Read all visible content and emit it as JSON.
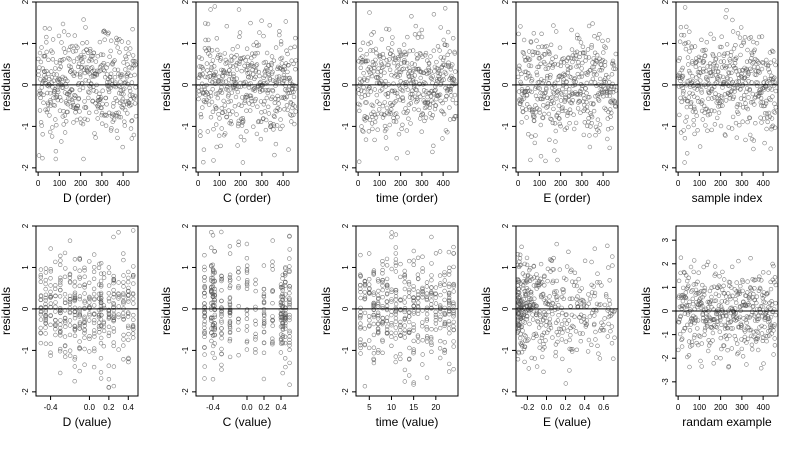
{
  "figure": {
    "ylabel": "residuals",
    "point_color": "#555555",
    "axis_color": "#000000"
  },
  "chart_data": [
    {
      "type": "scatter",
      "xlabel": "D (order)",
      "ylabel": "residuals",
      "xlim": [
        -10,
        470
      ],
      "ylim": [
        -2.1,
        2.0
      ],
      "xticks": [
        0,
        100,
        200,
        300,
        400
      ],
      "yticks": [
        -2,
        -1,
        0,
        1,
        2
      ],
      "hline": 0,
      "n_points": 460,
      "pattern": "uniform",
      "spread": 0.65
    },
    {
      "type": "scatter",
      "xlabel": "C (order)",
      "ylabel": "residuals",
      "xlim": [
        -10,
        470
      ],
      "ylim": [
        -2.1,
        2.0
      ],
      "xticks": [
        0,
        100,
        200,
        300,
        400
      ],
      "yticks": [
        -2,
        -1,
        0,
        1,
        2
      ],
      "hline": 0,
      "n_points": 460,
      "pattern": "uniform",
      "spread": 0.65
    },
    {
      "type": "scatter",
      "xlabel": "time (order)",
      "ylabel": "residuals",
      "xlim": [
        -10,
        470
      ],
      "ylim": [
        -2.1,
        2.0
      ],
      "xticks": [
        0,
        100,
        200,
        300,
        400
      ],
      "yticks": [
        -2,
        -1,
        0,
        1,
        2
      ],
      "hline": 0,
      "n_points": 460,
      "pattern": "uniform",
      "spread": 0.65
    },
    {
      "type": "scatter",
      "xlabel": "E (order)",
      "ylabel": "residuals",
      "xlim": [
        -10,
        470
      ],
      "ylim": [
        -2.1,
        2.0
      ],
      "xticks": [
        0,
        100,
        200,
        300,
        400
      ],
      "yticks": [
        -2,
        -1,
        0,
        1,
        2
      ],
      "hline": 0,
      "n_points": 460,
      "pattern": "uniform",
      "spread": 0.65
    },
    {
      "type": "scatter",
      "xlabel": "sample index",
      "ylabel": "residuals",
      "xlim": [
        -10,
        470
      ],
      "ylim": [
        -2.1,
        2.0
      ],
      "xticks": [
        0,
        100,
        200,
        300,
        400
      ],
      "yticks": [
        -2,
        -1,
        0,
        1,
        2
      ],
      "hline": 0,
      "n_points": 460,
      "pattern": "uniform",
      "spread": 0.65
    },
    {
      "type": "scatter",
      "xlabel": "D (value)",
      "ylabel": "residuals",
      "xlim": [
        -0.55,
        0.5
      ],
      "ylim": [
        -2.1,
        2.0
      ],
      "xticks": [
        -0.4,
        0.0,
        0.2,
        0.4
      ],
      "xticklabels": [
        "-0.4",
        "0.0",
        "0.2",
        "0.4"
      ],
      "yticks": [
        -2,
        -1,
        0,
        1,
        2
      ],
      "hline": 0,
      "n_points": 420,
      "pattern": "columns",
      "columns": [
        -0.5,
        -0.45,
        -0.4,
        -0.35,
        -0.3,
        -0.25,
        -0.2,
        -0.15,
        -0.1,
        -0.05,
        0.0,
        0.05,
        0.1,
        0.12,
        0.15,
        0.2,
        0.25,
        0.3,
        0.35,
        0.4,
        0.45
      ],
      "spread": 0.65
    },
    {
      "type": "scatter",
      "xlabel": "C (value)",
      "ylabel": "residuals",
      "xlim": [
        -0.6,
        0.6
      ],
      "ylim": [
        -2.1,
        2.0
      ],
      "xticks": [
        -0.4,
        0.0,
        0.2,
        0.4
      ],
      "xticklabels": [
        "-0.4",
        "0.0",
        "0.2",
        "0.4"
      ],
      "yticks": [
        -2,
        -1,
        0,
        1,
        2
      ],
      "hline": 0,
      "n_points": 380,
      "pattern": "columns",
      "columns": [
        -0.5,
        -0.42,
        -0.4,
        -0.38,
        -0.3,
        -0.2,
        -0.1,
        0.0,
        0.1,
        0.2,
        0.3,
        0.4,
        0.42,
        0.45,
        0.5
      ],
      "spread": 0.7
    },
    {
      "type": "scatter",
      "xlabel": "time (value)",
      "ylabel": "residuals",
      "xlim": [
        2,
        25
      ],
      "ylim": [
        -2.1,
        2.0
      ],
      "xticks": [
        5,
        10,
        15,
        20
      ],
      "xticklabels": [
        "5",
        "10",
        "15",
        "20"
      ],
      "yticks": [
        -2,
        -1,
        0,
        1,
        2
      ],
      "hline": 0,
      "n_points": 420,
      "pattern": "columns",
      "columns": [
        3,
        4,
        5,
        6,
        7,
        8,
        9,
        10,
        11,
        12,
        13,
        14,
        15,
        16,
        17,
        18,
        19,
        20,
        21,
        22,
        23,
        24
      ],
      "spread": 0.65
    },
    {
      "type": "scatter",
      "xlabel": "E (value)",
      "ylabel": "residuals",
      "xlim": [
        -0.32,
        0.75
      ],
      "ylim": [
        -2.1,
        2.0
      ],
      "xticks": [
        -0.2,
        0.0,
        0.2,
        0.4,
        0.6
      ],
      "xticklabels": [
        "-0.2",
        "0.0",
        "0.2",
        "0.4",
        "0.6"
      ],
      "yticks": [
        -2,
        -1,
        0,
        1,
        2
      ],
      "hline": 0,
      "n_points": 440,
      "pattern": "skewed",
      "spread": 0.65
    },
    {
      "type": "scatter",
      "xlabel": "randam example",
      "ylabel": "residuals",
      "xlim": [
        -10,
        470
      ],
      "ylim": [
        -3.6,
        3.6
      ],
      "xticks": [
        0,
        100,
        200,
        300,
        400
      ],
      "yticks": [
        -3,
        -2,
        -1,
        0,
        1,
        2,
        3
      ],
      "hline": 0,
      "n_points": 460,
      "pattern": "uniform",
      "spread": 1.0
    }
  ]
}
